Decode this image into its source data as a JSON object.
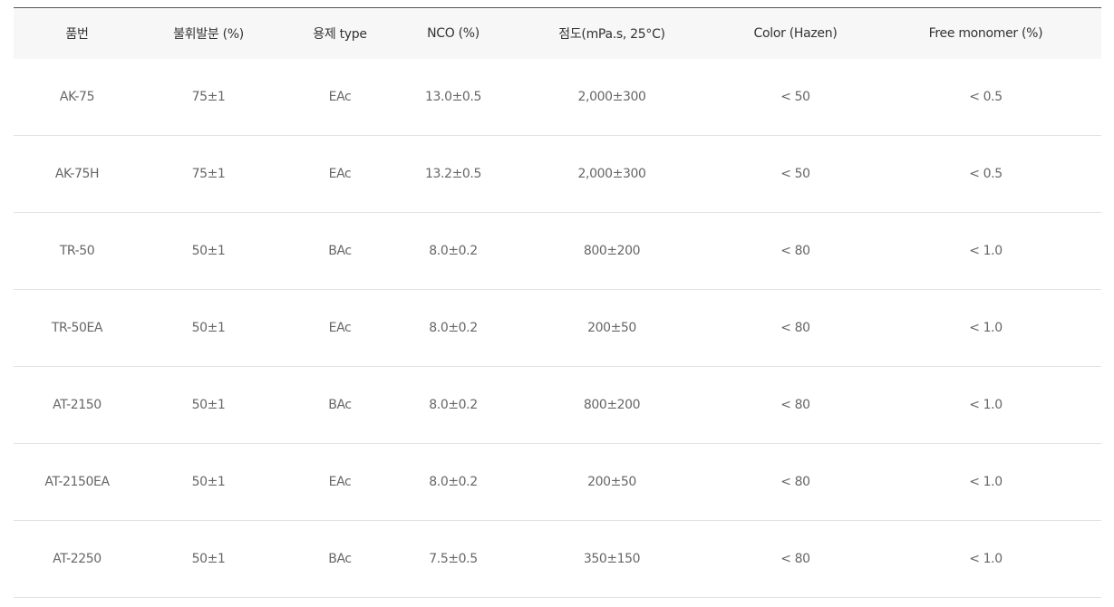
{
  "table": {
    "headers": [
      "품번",
      "불휘발분 (%)",
      "용제 type",
      "NCO (%)",
      "점도(mPa.s, 25°C)",
      "Color (Hazen)",
      "Free monomer (%)"
    ],
    "rows": [
      [
        "AK-75",
        "75±1",
        "EAc",
        "13.0±0.5",
        "2,000±300",
        "< 50",
        "< 0.5"
      ],
      [
        "AK-75H",
        "75±1",
        "EAc",
        "13.2±0.5",
        "2,000±300",
        "< 50",
        "< 0.5"
      ],
      [
        "TR-50",
        "50±1",
        "BAc",
        "8.0±0.2",
        "800±200",
        "< 80",
        "< 1.0"
      ],
      [
        "TR-50EA",
        "50±1",
        "EAc",
        "8.0±0.2",
        "200±50",
        "< 80",
        "< 1.0"
      ],
      [
        "AT-2150",
        "50±1",
        "BAc",
        "8.0±0.2",
        "800±200",
        "< 80",
        "< 1.0"
      ],
      [
        "AT-2150EA",
        "50±1",
        "EAc",
        "8.0±0.2",
        "200±50",
        "< 80",
        "< 1.0"
      ],
      [
        "AT-2250",
        "50±1",
        "BAc",
        "7.5±0.5",
        "350±150",
        "< 80",
        "< 1.0"
      ]
    ]
  }
}
